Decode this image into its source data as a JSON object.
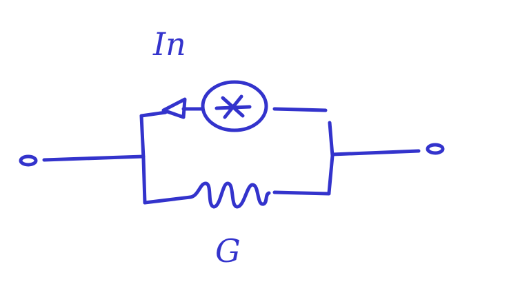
{
  "colors": {
    "ink": "#3333cc",
    "background": "#ffffff"
  },
  "labels": {
    "current_source": "In",
    "conductance": "G"
  },
  "icons": {
    "source_symbol": "current-source-icon",
    "source_direction": "arrowhead-left-icon",
    "resistor_symbol": "zigzag-resistor-icon",
    "terminal_symbol": "open-circle-terminal-icon"
  }
}
